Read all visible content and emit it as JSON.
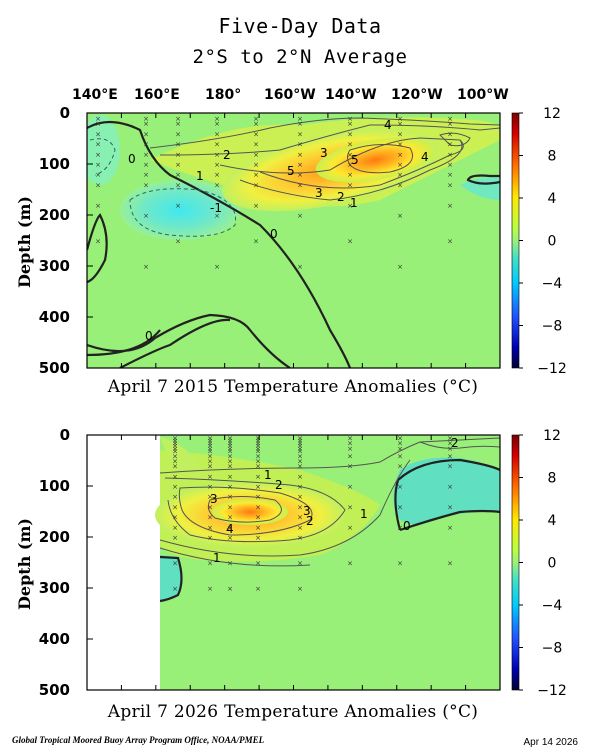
{
  "header": {
    "title": "Five-Day Data",
    "subtitle": "2°S to 2°N Average"
  },
  "chart_data": [
    {
      "type": "heatmap",
      "caption": "April 7 2015 Temperature Anomalies (°C)",
      "ylabel": "Depth (m)",
      "x_tick_labels": [
        "140°E",
        "160°E",
        "180°",
        "160°W",
        "140°W",
        "120°W",
        "100°W"
      ],
      "y_ticks": [
        0,
        100,
        200,
        300,
        400,
        500
      ],
      "ylim": [
        500,
        0
      ],
      "colorbar": {
        "ticks": [
          12,
          8,
          4,
          0,
          -4,
          -8,
          -12
        ],
        "range": [
          -12,
          12
        ]
      },
      "contour_labels": [
        "0",
        "1",
        "2",
        "3",
        "4",
        "5",
        "4",
        "3",
        "2",
        "1",
        "0",
        "-1",
        "0"
      ],
      "max_anomaly_approx": 5.5
    },
    {
      "type": "heatmap",
      "caption": "April 7 2026 Temperature Anomalies (°C)",
      "ylabel": "Depth (m)",
      "y_ticks": [
        0,
        100,
        200,
        300,
        400,
        500
      ],
      "ylim": [
        500,
        0
      ],
      "colorbar": {
        "ticks": [
          12,
          8,
          4,
          0,
          -4,
          -8,
          -12
        ],
        "range": [
          -12,
          12
        ]
      },
      "contour_labels": [
        "2",
        "1",
        "2",
        "3",
        "3",
        "2",
        "4",
        "1",
        "0",
        "1"
      ],
      "max_anomaly_approx": 4.5,
      "missing_region": "140°E–160°E"
    }
  ],
  "footer": {
    "credit": "Global Tropical Moored Buoy Array Program Office, NOAA/PMEL",
    "date": "Apr 14 2026"
  }
}
